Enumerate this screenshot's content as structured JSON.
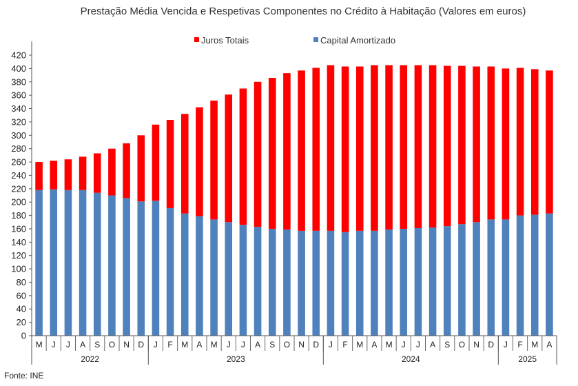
{
  "chart_data": {
    "type": "bar",
    "stacked": true,
    "title": "Prestação Média Vencida e Respetivas Componentes  no Crédito à Habitação (Valores em euros)",
    "xlabel": "",
    "ylabel": "",
    "ylim": [
      0,
      420
    ],
    "yticks": [
      0,
      20,
      40,
      60,
      80,
      100,
      120,
      140,
      160,
      180,
      200,
      220,
      240,
      260,
      280,
      300,
      320,
      340,
      360,
      380,
      400,
      420
    ],
    "legend_position": "top",
    "grid": false,
    "categories": [
      "M",
      "J",
      "J",
      "A",
      "S",
      "O",
      "N",
      "D",
      "J",
      "F",
      "M",
      "A",
      "M",
      "J",
      "J",
      "A",
      "S",
      "O",
      "N",
      "D",
      "J",
      "F",
      "M",
      "A",
      "M",
      "J",
      "J",
      "A",
      "S",
      "O",
      "N",
      "D",
      "J",
      "F",
      "M",
      "A"
    ],
    "year_groups": [
      {
        "label": "2022",
        "count": 8
      },
      {
        "label": "2023",
        "count": 12
      },
      {
        "label": "2024",
        "count": 12
      },
      {
        "label": "2025",
        "count": 4
      }
    ],
    "series": [
      {
        "name": "Capital Amortizado",
        "color": "#4f81bd",
        "values": [
          218,
          219,
          218,
          218,
          214,
          210,
          206,
          201,
          202,
          191,
          183,
          179,
          174,
          170,
          166,
          163,
          160,
          159,
          157,
          157,
          157,
          155,
          157,
          157,
          159,
          160,
          161,
          162,
          164,
          167,
          170,
          174,
          174,
          180,
          181,
          183
        ]
      },
      {
        "name": "Juros Totais",
        "color": "#ff0000",
        "values": [
          42,
          43,
          46,
          50,
          59,
          70,
          82,
          99,
          114,
          132,
          149,
          163,
          178,
          191,
          204,
          217,
          226,
          234,
          240,
          244,
          248,
          248,
          246,
          248,
          246,
          245,
          244,
          243,
          240,
          237,
          233,
          229,
          226,
          221,
          218,
          214
        ]
      }
    ],
    "totals": [
      260,
      262,
      264,
      268,
      273,
      280,
      288,
      300,
      316,
      323,
      332,
      342,
      352,
      361,
      370,
      380,
      386,
      393,
      397,
      401,
      405,
      403,
      403,
      405,
      405,
      405,
      405,
      405,
      404,
      404,
      403,
      403,
      400,
      401,
      399,
      397
    ]
  },
  "source": "Fonte: INE"
}
